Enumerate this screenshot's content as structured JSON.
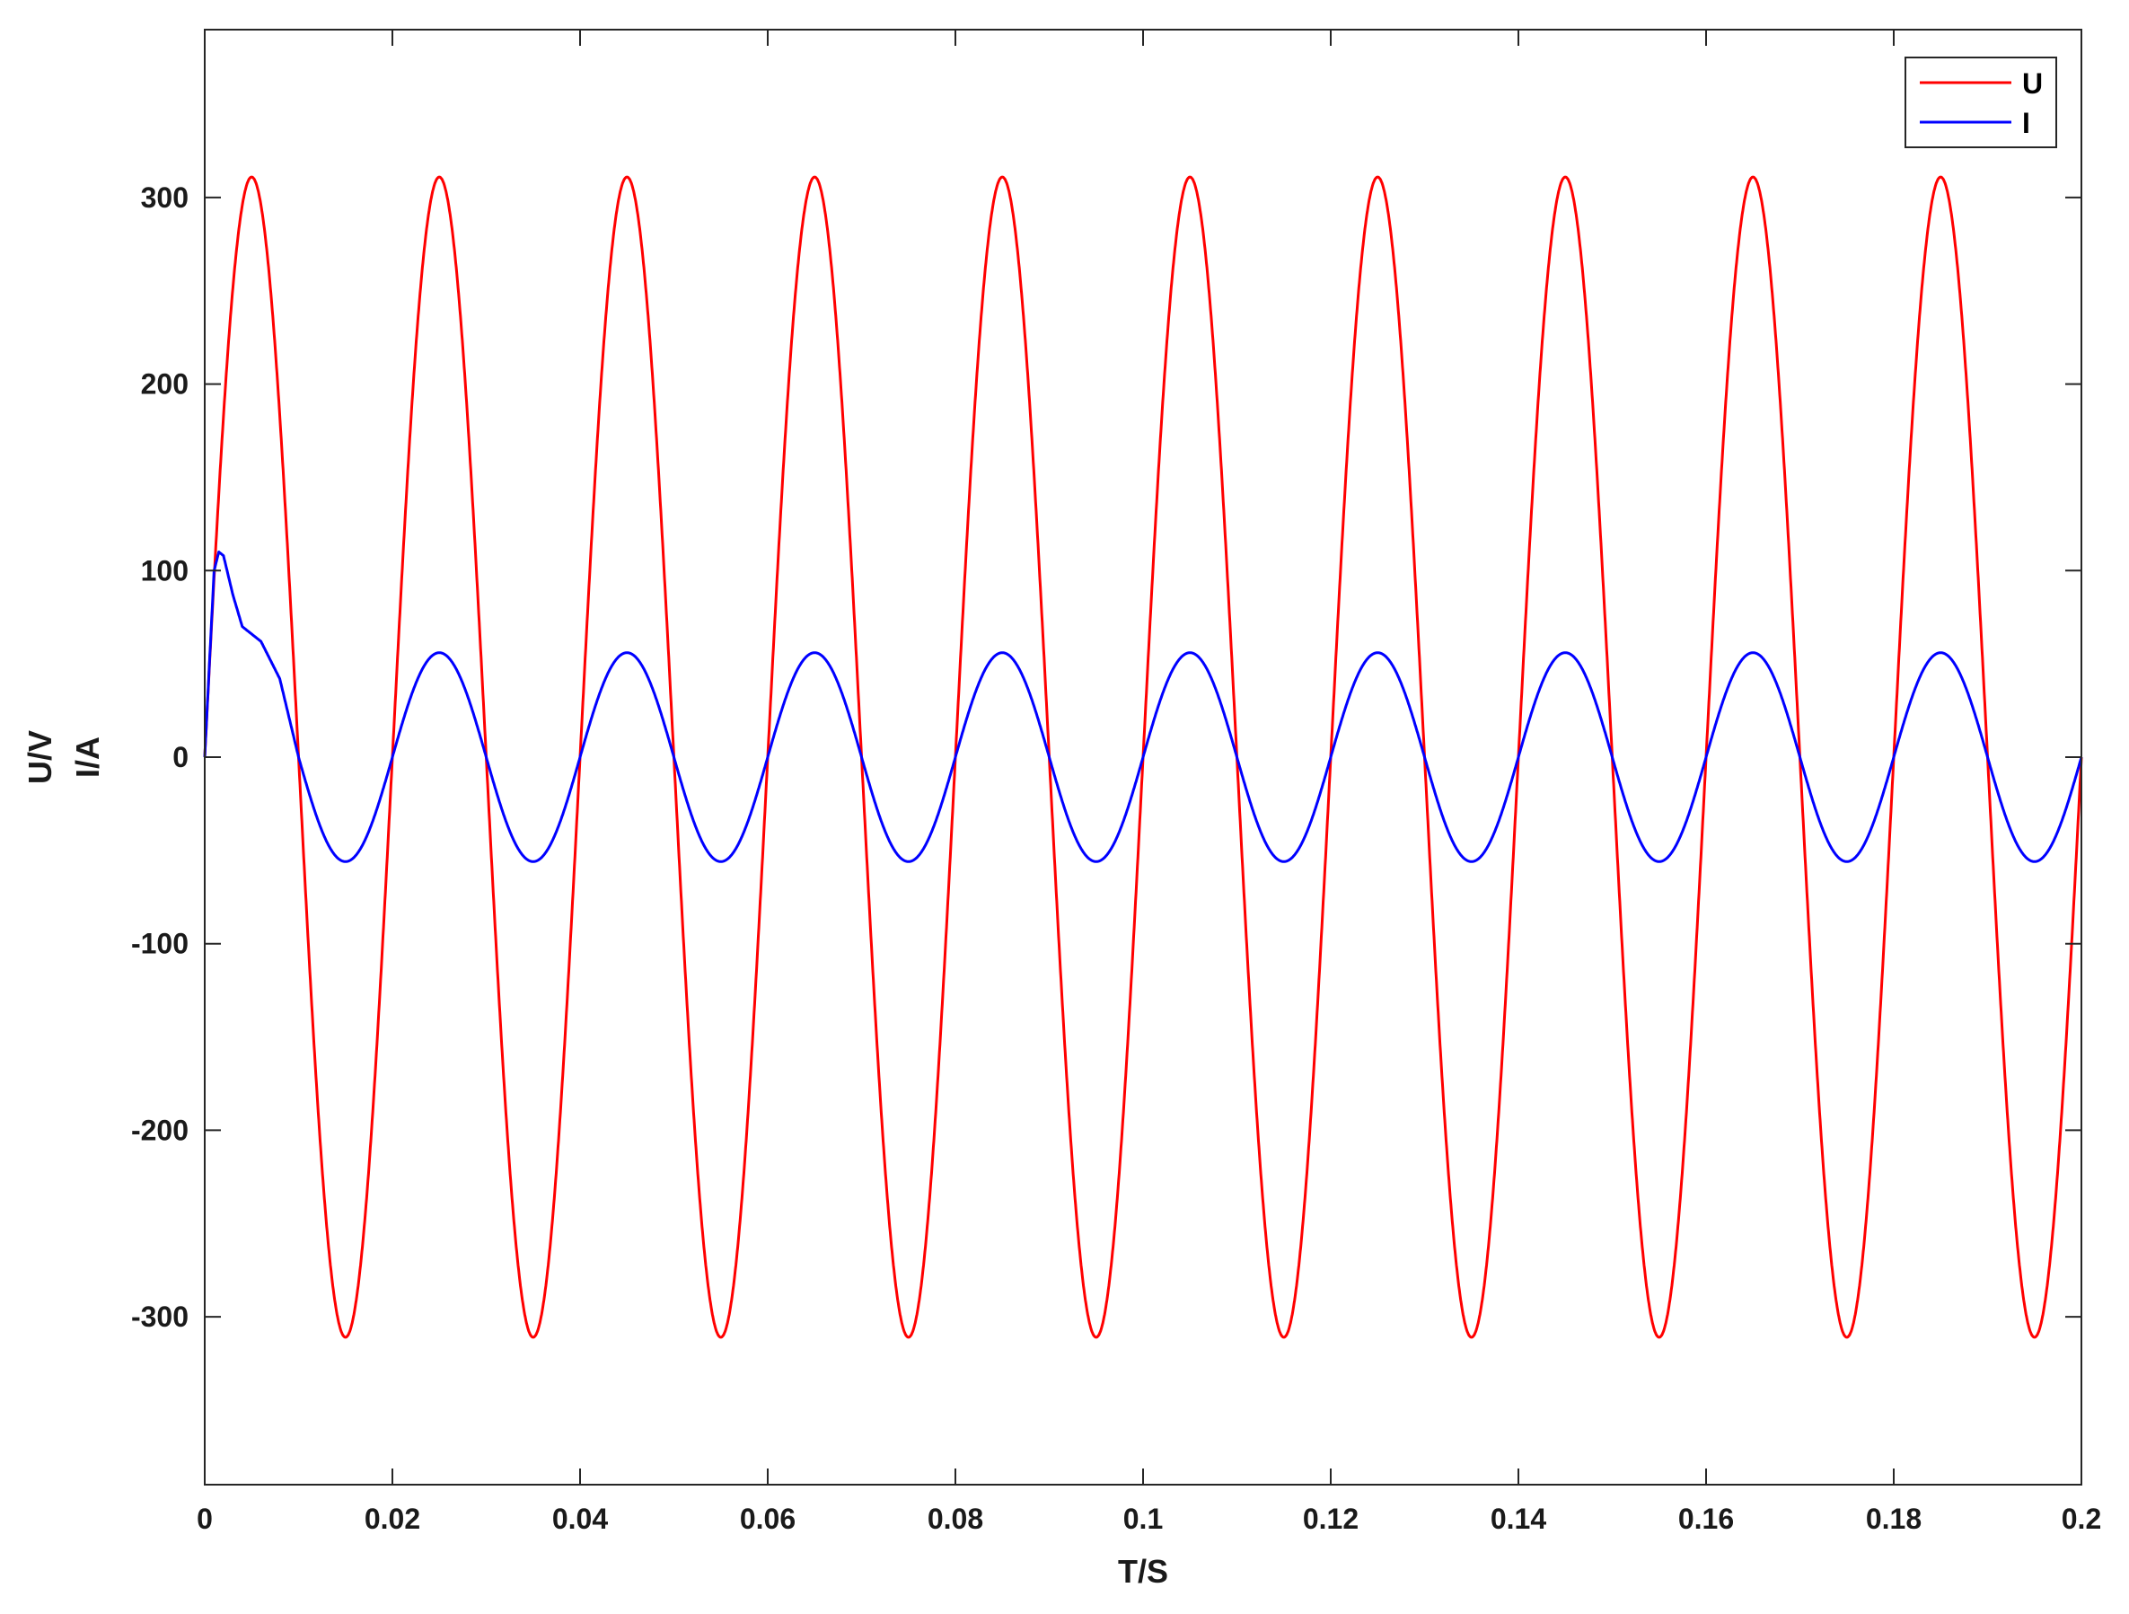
{
  "chart_data": {
    "type": "line",
    "xlabel": "T/S",
    "ylabel_lines": [
      "U/V",
      "I/A"
    ],
    "xlim": [
      0,
      0.2
    ],
    "ylim": [
      -390,
      390
    ],
    "xticks": [
      0,
      0.02,
      0.04,
      0.06,
      0.08,
      0.1,
      0.12,
      0.14,
      0.16,
      0.18,
      0.2
    ],
    "xtick_labels": [
      "0",
      "0.02",
      "0.04",
      "0.06",
      "0.08",
      "0.1",
      "0.12",
      "0.14",
      "0.16",
      "0.18",
      "0.2"
    ],
    "yticks": [
      -300,
      -200,
      -100,
      0,
      100,
      200,
      300
    ],
    "ytick_labels": [
      "-300",
      "-200",
      "-100",
      "0",
      "100",
      "200",
      "300"
    ],
    "grid": false,
    "legend": {
      "position": "top-right",
      "entries": [
        "U",
        "I"
      ]
    },
    "series": [
      {
        "name": "U",
        "color": "#ff0000",
        "shape": "sine",
        "amplitude": 311,
        "frequency_hz": 50,
        "x": [
          0,
          0.005,
          0.01,
          0.015,
          0.02,
          0.025,
          0.03,
          0.035,
          0.04,
          0.045,
          0.05,
          0.055,
          0.06,
          0.065,
          0.07,
          0.075,
          0.08,
          0.085,
          0.09,
          0.095,
          0.1,
          0.105,
          0.11,
          0.115,
          0.12,
          0.125,
          0.13,
          0.135,
          0.14,
          0.145,
          0.15,
          0.155,
          0.16,
          0.165,
          0.17,
          0.175,
          0.18,
          0.185,
          0.19,
          0.195,
          0.2
        ],
        "y": [
          0,
          311,
          0,
          -311,
          0,
          311,
          0,
          -311,
          0,
          311,
          0,
          -311,
          0,
          311,
          0,
          -311,
          0,
          311,
          0,
          -311,
          0,
          311,
          0,
          -311,
          0,
          311,
          0,
          -311,
          0,
          311,
          0,
          -311,
          0,
          311,
          0,
          -311,
          0,
          311,
          0,
          -311,
          0
        ]
      },
      {
        "name": "I",
        "color": "#0000ff",
        "shape": "sine",
        "amplitude": 56,
        "frequency_hz": 50,
        "x": [
          0,
          0.001,
          0.0015,
          0.002,
          0.003,
          0.004,
          0.006,
          0.008,
          0.01,
          0.015,
          0.02,
          0.025,
          0.03,
          0.035,
          0.04,
          0.045,
          0.05,
          0.055,
          0.06,
          0.065,
          0.07,
          0.075,
          0.08,
          0.085,
          0.09,
          0.095,
          0.1,
          0.105,
          0.11,
          0.115,
          0.12,
          0.125,
          0.13,
          0.135,
          0.14,
          0.145,
          0.15,
          0.155,
          0.16,
          0.165,
          0.17,
          0.175,
          0.18,
          0.185,
          0.19,
          0.195,
          0.2
        ],
        "y": [
          0,
          100,
          110,
          108,
          87,
          70,
          62,
          42,
          0,
          -56,
          0,
          56,
          0,
          -56,
          0,
          56,
          0,
          -56,
          0,
          56,
          0,
          -56,
          0,
          56,
          0,
          -56,
          0,
          56,
          0,
          -56,
          0,
          56,
          0,
          -56,
          0,
          56,
          0,
          -56,
          0,
          56,
          0,
          -56,
          0,
          56,
          0,
          -56,
          0
        ]
      }
    ]
  }
}
